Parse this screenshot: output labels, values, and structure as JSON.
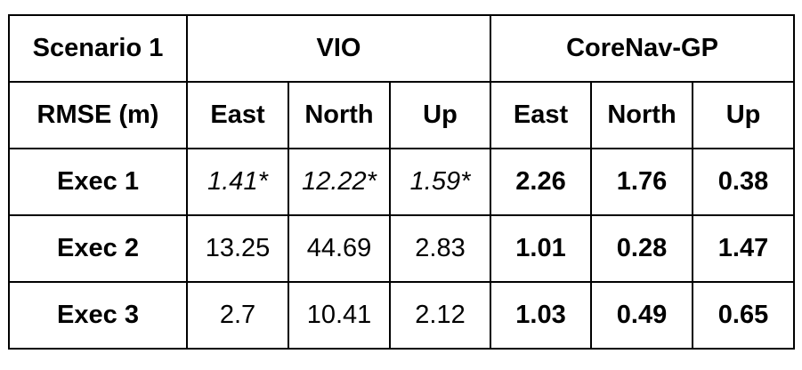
{
  "table": {
    "header_top": {
      "scenario_label": "Scenario 1",
      "group_vio": "VIO",
      "group_corenav": "CoreNav-GP"
    },
    "header_sub": {
      "metric_label": "RMSE (m)",
      "vio_cols": [
        "East",
        "North",
        "Up"
      ],
      "corenav_cols": [
        "East",
        "North",
        "Up"
      ]
    },
    "rows": [
      {
        "label": "Exec 1",
        "vio": [
          "1.41*",
          "12.22*",
          "1.59*"
        ],
        "corenav": [
          "2.26",
          "1.76",
          "0.38"
        ]
      },
      {
        "label": "Exec 2",
        "vio": [
          "13.25",
          "44.69",
          "2.83"
        ],
        "corenav": [
          "1.01",
          "0.28",
          "1.47"
        ]
      },
      {
        "label": "Exec 3",
        "vio": [
          "2.7",
          "10.41",
          "2.12"
        ],
        "corenav": [
          "1.03",
          "0.49",
          "0.65"
        ]
      }
    ]
  }
}
